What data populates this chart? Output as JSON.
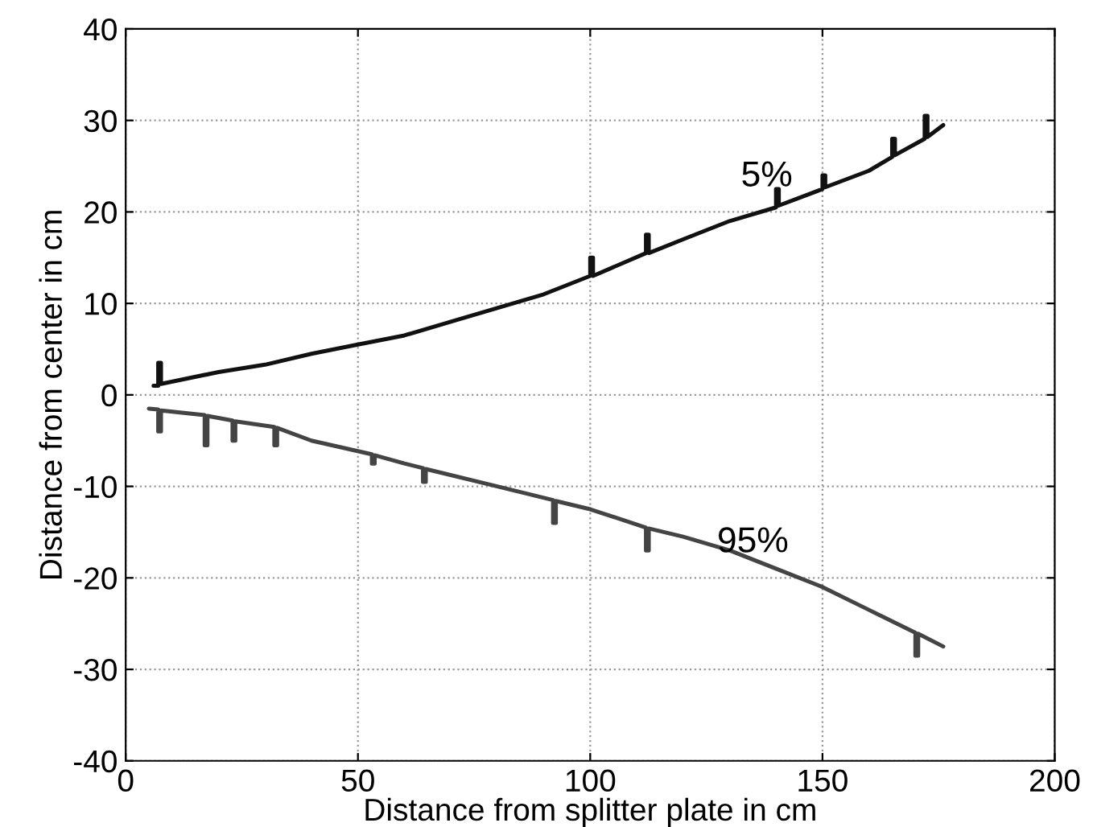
{
  "chart_data": {
    "type": "line",
    "xlabel": "Distance from splitter plate in cm",
    "ylabel": "Distance from center in cm",
    "xlim": [
      0,
      200
    ],
    "xticks": [
      0,
      50,
      100,
      150,
      200
    ],
    "ylim": [
      -40,
      40
    ],
    "yticks": [
      -40,
      -30,
      -20,
      -10,
      0,
      10,
      20,
      30,
      40
    ],
    "grid": true,
    "series": [
      {
        "color": "#111111",
        "x": [
          6,
          7,
          7,
          7.6,
          7.6,
          20,
          30,
          40,
          50,
          60,
          70,
          80,
          90,
          100,
          100,
          100.6,
          100.6,
          112,
          112,
          112.6,
          112.6,
          120,
          130,
          140,
          140,
          140.6,
          140.6,
          150,
          150,
          150.6,
          150.6,
          160,
          165,
          165,
          165.6,
          165.6,
          172,
          172,
          172.6,
          172.6,
          176
        ],
        "values": [
          1,
          1,
          3.5,
          3.5,
          1.2,
          2.5,
          3.3,
          4.5,
          5.5,
          6.5,
          8,
          9.5,
          11,
          13,
          15,
          15,
          13,
          15.5,
          17.5,
          17.5,
          15.5,
          17,
          19,
          20.5,
          22.5,
          22.5,
          20.7,
          22.5,
          24,
          24,
          22.7,
          24.5,
          26,
          28,
          28,
          26.2,
          28,
          30.5,
          30.5,
          28.2,
          29.5
        ]
      },
      {
        "color": "#444444",
        "x": [
          5,
          7,
          7,
          7.6,
          7.6,
          17,
          17,
          17.6,
          17.6,
          23,
          23,
          23.6,
          23.6,
          32,
          32,
          32.6,
          32.6,
          40,
          53,
          53,
          53.6,
          53.6,
          60,
          64,
          64,
          64.6,
          64.6,
          80,
          92,
          92,
          92.6,
          92.6,
          100,
          112,
          112,
          112.6,
          112.6,
          120,
          130,
          140,
          150,
          160,
          170,
          170,
          170.6,
          170.6,
          176
        ],
        "values": [
          -1.5,
          -1.6,
          -4,
          -4,
          -1.7,
          -2.2,
          -5.5,
          -5.5,
          -2.3,
          -2.8,
          -5,
          -5,
          -2.9,
          -3.5,
          -5.5,
          -5.5,
          -3.6,
          -5,
          -6.5,
          -7.5,
          -7.5,
          -6.6,
          -7.5,
          -8,
          -9.5,
          -9.5,
          -8.1,
          -10,
          -11.5,
          -14,
          -14,
          -11.6,
          -12.5,
          -14.5,
          -17,
          -17,
          -14.6,
          -15.5,
          -17,
          -19,
          -21,
          -23.5,
          -26,
          -28.5,
          -28.5,
          -26.1,
          -27.5
        ]
      }
    ],
    "annotations": [
      {
        "text": "5%",
        "x": 138,
        "y": 22
      },
      {
        "text": "95%",
        "x": 135,
        "y": -18
      }
    ]
  }
}
